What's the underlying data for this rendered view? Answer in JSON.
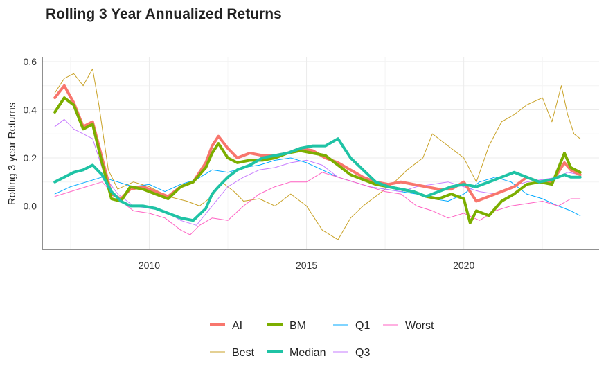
{
  "chart_data": {
    "type": "line",
    "title": "Rolling 3 Year Annualized Returns",
    "xlabel": "",
    "ylabel": "Rolling 3 year Returns",
    "xlim": [
      2006.6,
      2024.3
    ],
    "ylim": [
      -0.18,
      0.62
    ],
    "x_ticks": [
      2010,
      2015,
      2020
    ],
    "y_ticks": [
      0.0,
      0.2,
      0.4,
      0.6
    ],
    "y_tick_labels": [
      "0.0",
      "0.2",
      "0.4",
      "0.6"
    ],
    "grid": true,
    "legend_position": "bottom",
    "series": [
      {
        "name": "AI",
        "color": "#F8766D",
        "width": 4,
        "x": [
          2007.0,
          2007.3,
          2007.6,
          2007.9,
          2008.2,
          2008.5,
          2008.8,
          2009.1,
          2009.4,
          2009.8,
          2010.2,
          2010.6,
          2011.0,
          2011.4,
          2011.8,
          2012.0,
          2012.2,
          2012.5,
          2012.8,
          2013.2,
          2013.6,
          2014.0,
          2014.4,
          2014.8,
          2015.2,
          2015.6,
          2016.0,
          2016.4,
          2016.8,
          2017.2,
          2017.6,
          2018.0,
          2018.4,
          2018.8,
          2019.2,
          2019.6,
          2020.0,
          2020.4,
          2020.8,
          2021.2,
          2021.6,
          2022.0,
          2022.4,
          2022.8,
          2023.2,
          2023.4,
          2023.7
        ],
        "y": [
          0.45,
          0.5,
          0.43,
          0.33,
          0.35,
          0.2,
          0.05,
          0.03,
          0.07,
          0.08,
          0.06,
          0.04,
          0.08,
          0.1,
          0.18,
          0.25,
          0.29,
          0.24,
          0.2,
          0.22,
          0.21,
          0.21,
          0.22,
          0.24,
          0.23,
          0.2,
          0.18,
          0.15,
          0.12,
          0.1,
          0.09,
          0.1,
          0.09,
          0.08,
          0.07,
          0.07,
          0.1,
          0.02,
          0.04,
          0.06,
          0.08,
          0.12,
          0.1,
          0.1,
          0.18,
          0.15,
          0.13
        ]
      },
      {
        "name": "BM",
        "color": "#7CAE00",
        "width": 4,
        "x": [
          2007.0,
          2007.3,
          2007.6,
          2007.9,
          2008.2,
          2008.5,
          2008.8,
          2009.1,
          2009.4,
          2009.8,
          2010.2,
          2010.6,
          2011.0,
          2011.4,
          2011.8,
          2012.0,
          2012.2,
          2012.5,
          2012.8,
          2013.2,
          2013.6,
          2014.0,
          2014.4,
          2014.8,
          2015.2,
          2015.6,
          2016.0,
          2016.4,
          2016.8,
          2017.2,
          2017.6,
          2018.0,
          2018.4,
          2018.8,
          2019.2,
          2019.6,
          2020.0,
          2020.2,
          2020.4,
          2020.8,
          2021.2,
          2021.6,
          2022.0,
          2022.4,
          2022.8,
          2023.2,
          2023.4,
          2023.7
        ],
        "y": [
          0.39,
          0.45,
          0.42,
          0.32,
          0.34,
          0.18,
          0.03,
          0.02,
          0.08,
          0.07,
          0.05,
          0.03,
          0.08,
          0.1,
          0.16,
          0.22,
          0.26,
          0.2,
          0.18,
          0.19,
          0.19,
          0.2,
          0.22,
          0.23,
          0.22,
          0.21,
          0.17,
          0.13,
          0.11,
          0.09,
          0.08,
          0.07,
          0.06,
          0.04,
          0.03,
          0.05,
          0.03,
          -0.07,
          -0.02,
          -0.04,
          0.02,
          0.05,
          0.09,
          0.1,
          0.09,
          0.22,
          0.16,
          0.14
        ]
      },
      {
        "name": "Median",
        "color": "#1FC3A5",
        "width": 4,
        "x": [
          2007.0,
          2007.3,
          2007.6,
          2007.9,
          2008.2,
          2008.5,
          2008.8,
          2009.1,
          2009.4,
          2009.8,
          2010.2,
          2010.6,
          2011.0,
          2011.4,
          2011.8,
          2012.0,
          2012.2,
          2012.5,
          2012.8,
          2013.2,
          2013.6,
          2014.0,
          2014.4,
          2014.8,
          2015.2,
          2015.6,
          2016.0,
          2016.4,
          2016.8,
          2017.2,
          2017.6,
          2018.0,
          2018.4,
          2018.8,
          2019.2,
          2019.6,
          2020.0,
          2020.4,
          2020.8,
          2021.2,
          2021.6,
          2022.0,
          2022.4,
          2022.8,
          2023.2,
          2023.4,
          2023.7
        ],
        "y": [
          0.1,
          0.12,
          0.14,
          0.15,
          0.17,
          0.13,
          0.06,
          0.02,
          0.0,
          0.0,
          -0.01,
          -0.03,
          -0.05,
          -0.06,
          -0.01,
          0.05,
          0.08,
          0.12,
          0.15,
          0.17,
          0.2,
          0.21,
          0.22,
          0.24,
          0.25,
          0.25,
          0.28,
          0.2,
          0.15,
          0.1,
          0.08,
          0.07,
          0.06,
          0.04,
          0.06,
          0.08,
          0.09,
          0.08,
          0.1,
          0.12,
          0.14,
          0.12,
          0.1,
          0.11,
          0.13,
          0.12,
          0.12
        ]
      },
      {
        "name": "Best",
        "color": "#C9A227",
        "width": 1,
        "x": [
          2007.0,
          2007.3,
          2007.6,
          2007.9,
          2008.2,
          2008.4,
          2008.7,
          2009.0,
          2009.5,
          2010.0,
          2010.6,
          2011.2,
          2011.6,
          2012.0,
          2012.3,
          2012.7,
          2013.0,
          2013.5,
          2014.0,
          2014.5,
          2015.0,
          2015.5,
          2016.0,
          2016.4,
          2016.8,
          2017.3,
          2017.8,
          2018.2,
          2018.7,
          2019.0,
          2019.5,
          2020.0,
          2020.4,
          2020.8,
          2021.2,
          2021.6,
          2022.0,
          2022.5,
          2022.8,
          2023.1,
          2023.3,
          2023.5,
          2023.7
        ],
        "y": [
          0.47,
          0.53,
          0.55,
          0.5,
          0.57,
          0.42,
          0.15,
          0.07,
          0.1,
          0.08,
          0.04,
          0.02,
          0.0,
          0.04,
          0.1,
          0.06,
          0.02,
          0.03,
          0.0,
          0.05,
          0.0,
          -0.1,
          -0.14,
          -0.05,
          0.0,
          0.05,
          0.1,
          0.15,
          0.2,
          0.3,
          0.25,
          0.2,
          0.1,
          0.25,
          0.35,
          0.38,
          0.42,
          0.45,
          0.35,
          0.5,
          0.38,
          0.3,
          0.28
        ]
      },
      {
        "name": "Q1",
        "color": "#00A9FF",
        "width": 1,
        "x": [
          2007.0,
          2007.5,
          2008.0,
          2008.5,
          2009.0,
          2009.5,
          2010.0,
          2010.5,
          2011.0,
          2011.5,
          2012.0,
          2012.5,
          2013.0,
          2013.5,
          2014.0,
          2014.5,
          2015.0,
          2015.5,
          2016.0,
          2016.5,
          2017.0,
          2017.5,
          2018.0,
          2018.5,
          2019.0,
          2019.5,
          2020.0,
          2020.5,
          2021.0,
          2021.5,
          2022.0,
          2022.5,
          2023.0,
          2023.4,
          2023.7
        ],
        "y": [
          0.05,
          0.08,
          0.1,
          0.12,
          0.1,
          0.08,
          0.09,
          0.06,
          0.09,
          0.11,
          0.15,
          0.14,
          0.16,
          0.17,
          0.19,
          0.2,
          0.18,
          0.15,
          0.12,
          0.1,
          0.08,
          0.07,
          0.06,
          0.05,
          0.03,
          0.02,
          0.05,
          0.1,
          0.12,
          0.1,
          0.05,
          0.03,
          0.0,
          -0.02,
          -0.04
        ]
      },
      {
        "name": "Q3",
        "color": "#C77CFF",
        "width": 1,
        "x": [
          2007.0,
          2007.3,
          2007.6,
          2007.9,
          2008.2,
          2008.6,
          2009.0,
          2009.5,
          2010.0,
          2010.5,
          2011.0,
          2011.5,
          2012.0,
          2012.5,
          2013.0,
          2013.5,
          2014.0,
          2014.5,
          2015.0,
          2015.5,
          2016.0,
          2016.5,
          2017.0,
          2017.5,
          2018.0,
          2018.5,
          2019.0,
          2019.5,
          2020.0,
          2020.5,
          2021.0,
          2021.5,
          2022.0,
          2022.5,
          2023.0,
          2023.3,
          2023.7
        ],
        "y": [
          0.33,
          0.36,
          0.32,
          0.3,
          0.28,
          0.12,
          0.05,
          0.0,
          -0.01,
          -0.02,
          -0.06,
          -0.08,
          0.0,
          0.08,
          0.12,
          0.15,
          0.16,
          0.18,
          0.19,
          0.17,
          0.12,
          0.1,
          0.08,
          0.07,
          0.06,
          0.08,
          0.09,
          0.1,
          0.08,
          0.06,
          0.05,
          0.08,
          0.1,
          0.11,
          0.12,
          0.14,
          0.13
        ]
      },
      {
        "name": "Worst",
        "color": "#FF61C3",
        "width": 1,
        "x": [
          2007.0,
          2007.5,
          2008.0,
          2008.5,
          2009.0,
          2009.5,
          2010.0,
          2010.5,
          2011.0,
          2011.3,
          2011.6,
          2012.0,
          2012.5,
          2013.0,
          2013.5,
          2014.0,
          2014.5,
          2015.0,
          2015.5,
          2016.0,
          2016.5,
          2017.0,
          2017.5,
          2018.0,
          2018.5,
          2019.0,
          2019.5,
          2020.0,
          2020.5,
          2021.0,
          2021.5,
          2022.0,
          2022.5,
          2023.0,
          2023.4,
          2023.7
        ],
        "y": [
          0.04,
          0.06,
          0.08,
          0.1,
          0.03,
          -0.02,
          -0.03,
          -0.05,
          -0.1,
          -0.12,
          -0.08,
          -0.05,
          -0.06,
          0.0,
          0.05,
          0.08,
          0.1,
          0.1,
          0.14,
          0.12,
          0.1,
          0.08,
          0.06,
          0.05,
          0.0,
          -0.02,
          -0.05,
          -0.03,
          -0.06,
          -0.02,
          0.0,
          0.01,
          0.02,
          0.0,
          0.03,
          0.03
        ]
      }
    ],
    "legend": {
      "rows": [
        [
          "AI",
          "BM",
          "Q1",
          "Worst"
        ],
        [
          "Best",
          "Median",
          "Q3"
        ]
      ]
    }
  }
}
